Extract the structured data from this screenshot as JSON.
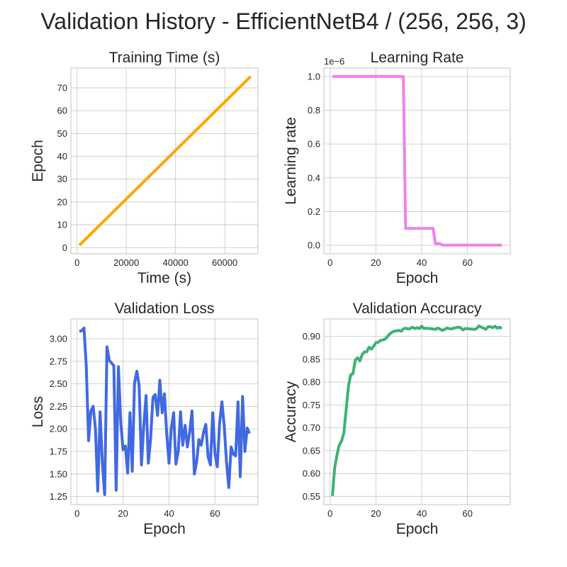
{
  "figure": {
    "title": "Validation History - EfficientNetB4 / (256, 256, 3)"
  },
  "colors": {
    "training_time": "#ffa500",
    "learning_rate": "#ee82ee",
    "val_loss": "#4169e1",
    "val_accuracy": "#3cb371",
    "grid": "#cccccc"
  },
  "chart_data": [
    {
      "id": "time",
      "type": "line",
      "title": "Training Time (s)",
      "xlabel": "Time (s)",
      "ylabel": "Epoch",
      "xlim": [
        -2500,
        73500
      ],
      "ylim": [
        -2.7,
        78.7
      ],
      "xticks": [
        0,
        20000,
        40000,
        60000
      ],
      "xtick_labels": [
        "0",
        "20000",
        "40000",
        "60000"
      ],
      "yticks": [
        0,
        10,
        20,
        30,
        40,
        50,
        60,
        70
      ],
      "ytick_labels": [
        "0",
        "10",
        "20",
        "30",
        "40",
        "50",
        "60",
        "70"
      ],
      "grid": true,
      "series": [
        {
          "color": "#ffa500",
          "x": [
            940,
            70500
          ],
          "y": [
            1,
            75
          ]
        }
      ]
    },
    {
      "id": "lr",
      "type": "line",
      "title": "Learning Rate",
      "xlabel": "Epoch",
      "ylabel": "Learning rate",
      "offset_label": "1e−6",
      "xlim": [
        -2.7,
        78.7
      ],
      "ylim": [
        -0.05,
        1.05
      ],
      "xticks": [
        0,
        20,
        40,
        60
      ],
      "xtick_labels": [
        "0",
        "20",
        "40",
        "60"
      ],
      "yticks": [
        0,
        0.2,
        0.4,
        0.6,
        0.8,
        1.0
      ],
      "ytick_labels": [
        "0.0",
        "0.2",
        "0.4",
        "0.6",
        "0.8",
        "1.0"
      ],
      "grid": true,
      "series": [
        {
          "color": "#ee82ee",
          "x": [
            1,
            32,
            33,
            45,
            46,
            48,
            49,
            75
          ],
          "y": [
            1.0,
            1.0,
            0.1,
            0.1,
            0.01,
            0.01,
            0.001,
            0.001
          ]
        }
      ]
    },
    {
      "id": "loss",
      "type": "line",
      "title": "Validation Loss",
      "xlabel": "Epoch",
      "ylabel": "Loss",
      "xlim": [
        -2.7,
        78.7
      ],
      "ylim": [
        1.16,
        3.22
      ],
      "xticks": [
        0,
        20,
        40,
        60
      ],
      "xtick_labels": [
        "0",
        "20",
        "40",
        "60"
      ],
      "yticks": [
        1.25,
        1.5,
        1.75,
        2.0,
        2.25,
        2.5,
        2.75,
        3.0
      ],
      "ytick_labels": [
        "1.25",
        "1.50",
        "1.75",
        "2.00",
        "2.25",
        "2.50",
        "2.75",
        "3.00"
      ],
      "grid": true,
      "series": [
        {
          "color": "#4169e1",
          "x": [
            1,
            2,
            3,
            4,
            5,
            6,
            7,
            8,
            9,
            10,
            11,
            12,
            13,
            14,
            15,
            16,
            17,
            18,
            19,
            20,
            21,
            22,
            23,
            24,
            25,
            26,
            27,
            28,
            29,
            30,
            31,
            32,
            33,
            34,
            35,
            36,
            37,
            38,
            39,
            40,
            41,
            42,
            43,
            44,
            45,
            46,
            47,
            48,
            49,
            50,
            51,
            52,
            53,
            54,
            55,
            56,
            57,
            58,
            59,
            60,
            61,
            62,
            63,
            64,
            65,
            66,
            67,
            68,
            69,
            70,
            71,
            72,
            73,
            74,
            75
          ],
          "y": [
            3.08,
            3.09,
            3.12,
            2.7,
            1.87,
            2.2,
            2.25,
            2.0,
            1.31,
            2.19,
            1.62,
            1.27,
            2.91,
            2.76,
            2.73,
            2.7,
            1.32,
            2.69,
            2.07,
            1.77,
            1.81,
            1.51,
            2.18,
            1.53,
            2.51,
            2.64,
            2.48,
            1.6,
            2.03,
            2.37,
            1.62,
            1.89,
            2.35,
            2.38,
            2.15,
            2.54,
            2.18,
            2.39,
            1.95,
            1.62,
            2.01,
            2.18,
            1.61,
            1.75,
            2.19,
            1.82,
            2.04,
            1.8,
            1.97,
            2.2,
            1.5,
            1.63,
            1.88,
            1.82,
            1.96,
            2.05,
            1.69,
            1.6,
            2.18,
            1.72,
            1.58,
            2.06,
            2.3,
            2.04,
            1.63,
            1.35,
            1.8,
            1.72,
            1.7,
            2.3,
            1.47,
            2.36,
            1.75,
            2.01,
            1.95
          ]
        }
      ]
    },
    {
      "id": "acc",
      "type": "line",
      "title": "Validation Accuracy",
      "xlabel": "Epoch",
      "ylabel": "Accuracy",
      "xlim": [
        -2.7,
        78.7
      ],
      "ylim": [
        0.532,
        0.938
      ],
      "xticks": [
        0,
        20,
        40,
        60
      ],
      "xtick_labels": [
        "0",
        "20",
        "40",
        "60"
      ],
      "yticks": [
        0.55,
        0.6,
        0.65,
        0.7,
        0.75,
        0.8,
        0.85,
        0.9
      ],
      "ytick_labels": [
        "0.55",
        "0.60",
        "0.65",
        "0.70",
        "0.75",
        "0.80",
        "0.85",
        "0.90"
      ],
      "grid": true,
      "series": [
        {
          "color": "#3cb371",
          "x": [
            1,
            2,
            3,
            4,
            5,
            6,
            7,
            8,
            9,
            10,
            11,
            12,
            13,
            14,
            15,
            16,
            17,
            18,
            19,
            20,
            21,
            22,
            23,
            24,
            25,
            26,
            27,
            28,
            29,
            30,
            31,
            32,
            33,
            34,
            35,
            36,
            37,
            38,
            39,
            40,
            41,
            42,
            43,
            44,
            45,
            46,
            47,
            48,
            49,
            50,
            51,
            52,
            53,
            54,
            55,
            56,
            57,
            58,
            59,
            60,
            61,
            62,
            63,
            64,
            65,
            66,
            67,
            68,
            69,
            70,
            71,
            72,
            73,
            74,
            75
          ],
          "y": [
            0.551,
            0.612,
            0.64,
            0.662,
            0.671,
            0.688,
            0.738,
            0.79,
            0.816,
            0.818,
            0.848,
            0.853,
            0.846,
            0.86,
            0.866,
            0.866,
            0.876,
            0.872,
            0.878,
            0.886,
            0.887,
            0.891,
            0.892,
            0.894,
            0.899,
            0.905,
            0.909,
            0.911,
            0.912,
            0.913,
            0.911,
            0.916,
            0.918,
            0.916,
            0.917,
            0.92,
            0.917,
            0.919,
            0.917,
            0.922,
            0.917,
            0.918,
            0.917,
            0.917,
            0.916,
            0.915,
            0.918,
            0.916,
            0.913,
            0.915,
            0.918,
            0.917,
            0.916,
            0.918,
            0.919,
            0.92,
            0.919,
            0.914,
            0.917,
            0.917,
            0.916,
            0.916,
            0.915,
            0.917,
            0.923,
            0.92,
            0.918,
            0.915,
            0.921,
            0.921,
            0.919,
            0.922,
            0.918,
            0.92,
            0.917
          ]
        }
      ]
    }
  ]
}
